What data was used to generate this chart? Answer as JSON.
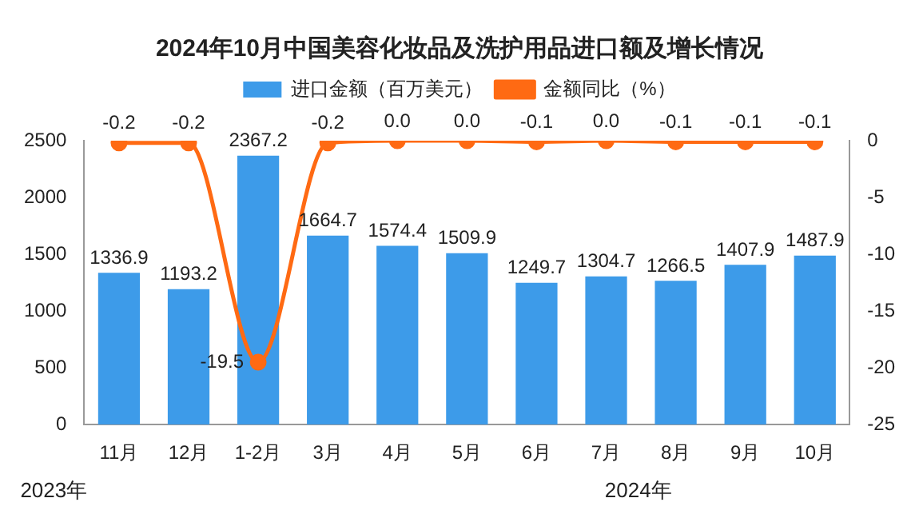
{
  "chart_data": {
    "type": "bar",
    "title": "2024年10月中国美容化妆品及洗护用品进口额及增长情况",
    "categories": [
      "11月",
      "12月",
      "1-2月",
      "3月",
      "4月",
      "5月",
      "6月",
      "7月",
      "8月",
      "9月",
      "10月"
    ],
    "series": [
      {
        "name": "进口金额（百万美元）",
        "color": "#3d9be9",
        "values": [
          1336.9,
          1193.2,
          2367.2,
          1664.7,
          1574.4,
          1509.9,
          1249.7,
          1304.7,
          1266.5,
          1407.9,
          1487.9
        ],
        "value_labels": [
          "1336.9",
          "1193.2",
          "2367.2",
          "1664.7",
          "1574.4",
          "1509.9",
          "1249.7",
          "1304.7",
          "1266.5",
          "1407.9",
          "1487.9"
        ]
      },
      {
        "name": "金额同比（%）",
        "type": "line",
        "axis": "y2",
        "color": "#ff6a13",
        "values": [
          -0.2,
          -0.2,
          -19.5,
          -0.2,
          0.0,
          0.0,
          -0.1,
          0.0,
          -0.1,
          -0.1,
          -0.1
        ],
        "value_labels": [
          "-0.2",
          "-0.2",
          "-19.5",
          "-0.2",
          "0.0",
          "0.0",
          "-0.1",
          "0.0",
          "-0.1",
          "-0.1",
          "-0.1"
        ]
      }
    ],
    "ylim": [
      0,
      2500
    ],
    "yticks": [
      0,
      500,
      1000,
      1500,
      2000,
      2500
    ],
    "y2lim": [
      -25,
      0
    ],
    "y2ticks": [
      -25,
      -20,
      -15,
      -10,
      -5,
      0
    ],
    "legend": "top",
    "marker": "circle",
    "annotations": [
      "2023年",
      "2024年"
    ]
  }
}
